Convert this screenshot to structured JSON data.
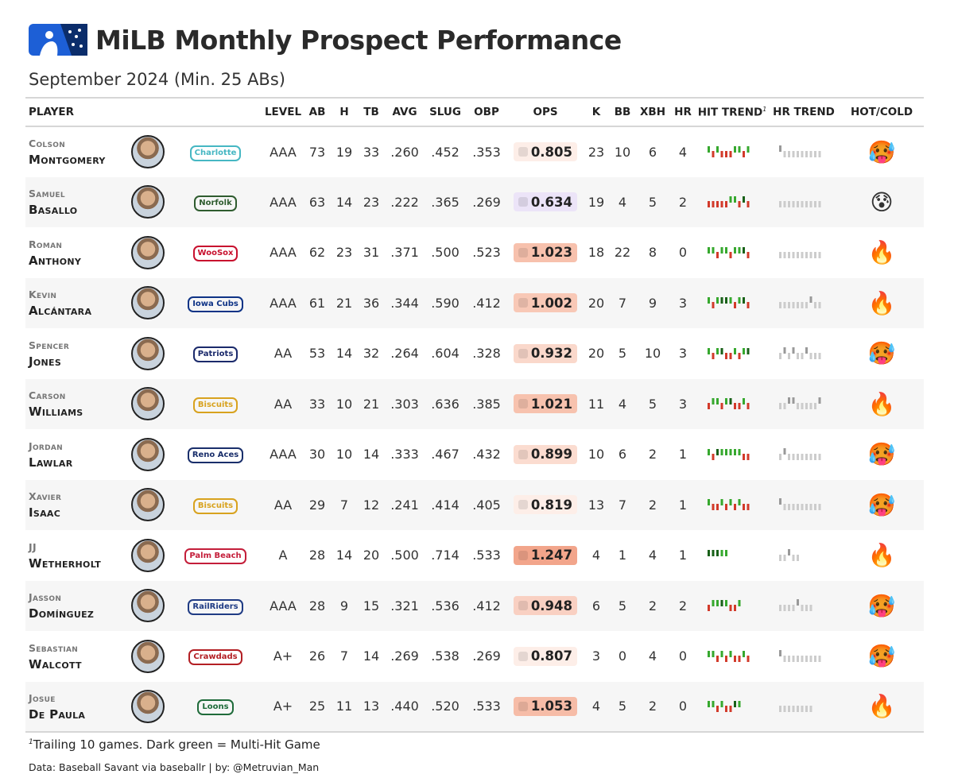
{
  "header": {
    "title": "MiLB Monthly Prospect Performance",
    "subtitle": "September 2024 (Min. 25 ABs)",
    "logo_colors": [
      "#1d5fd6",
      "#0b2d6b"
    ]
  },
  "columns": {
    "player": "PLAYER",
    "level": "LEVEL",
    "ab": "AB",
    "h": "H",
    "tb": "TB",
    "avg": "AVG",
    "slug": "SLUG",
    "obp": "OBP",
    "ops": "OPS",
    "k": "K",
    "bb": "BB",
    "xbh": "XBH",
    "hr": "HR",
    "hit_trend": "HIT TREND",
    "hit_trend_sup": "1",
    "hr_trend": "HR TREND",
    "hot_cold": "HOT/COLD"
  },
  "chart_data": {
    "type": "table",
    "title": "MiLB Monthly Prospect Performance",
    "subtitle": "September 2024 (Min. 25 ABs)",
    "colors": {
      "hit": "#36a82e",
      "multi_hit": "#186018",
      "no_hit": "#d23a2a",
      "hr": "#999999",
      "no_hr": "#cccccc"
    },
    "rows": [
      {
        "first": "Colson",
        "last": "Montgomery",
        "team": "Charlotte",
        "team_color": "#46b7c3",
        "level": "AAA",
        "ab": "73",
        "h": "19",
        "tb": "33",
        "avg": ".260",
        "slug": ".452",
        "obp": ".353",
        "ops": "0.805",
        "ops_color": "#fdeee8",
        "k": "23",
        "bb": "10",
        "xbh": "6",
        "hr": "4",
        "hot": "🥵",
        "hits": [
          1,
          0,
          1,
          0,
          0,
          0,
          1,
          1,
          0,
          1
        ],
        "hrs": [
          1,
          0,
          0,
          0,
          0,
          0,
          0,
          0,
          0,
          0
        ]
      },
      {
        "first": "Samuel",
        "last": "Basallo",
        "team": "Norfolk",
        "team_color": "#2f5c2f",
        "level": "AAA",
        "ab": "63",
        "h": "14",
        "tb": "23",
        "avg": ".222",
        "slug": ".365",
        "obp": ".269",
        "ops": "0.634",
        "ops_color": "#ece4f8",
        "k": "19",
        "bb": "4",
        "xbh": "5",
        "hr": "2",
        "hot": "😰",
        "hits": [
          0,
          0,
          0,
          0,
          0,
          1,
          1,
          0,
          2,
          0
        ],
        "hrs": [
          0,
          0,
          0,
          0,
          0,
          0,
          0,
          0,
          0,
          0
        ]
      },
      {
        "first": "Roman",
        "last": "Anthony",
        "team": "WooSox",
        "team_color": "#c8102e",
        "level": "AAA",
        "ab": "62",
        "h": "23",
        "tb": "31",
        "avg": ".371",
        "slug": ".500",
        "obp": ".523",
        "ops": "1.023",
        "ops_color": "#f7c1ad",
        "k": "18",
        "bb": "22",
        "xbh": "8",
        "hr": "0",
        "hot": "🔥",
        "hits": [
          1,
          1,
          0,
          1,
          1,
          0,
          1,
          1,
          2,
          0
        ],
        "hrs": [
          0,
          0,
          0,
          0,
          0,
          0,
          0,
          0,
          0,
          0
        ]
      },
      {
        "first": "Kevin",
        "last": "Alcántara",
        "team": "Iowa Cubs",
        "team_color": "#0e3386",
        "level": "AAA",
        "ab": "61",
        "h": "21",
        "tb": "36",
        "avg": ".344",
        "slug": ".590",
        "obp": ".412",
        "ops": "1.002",
        "ops_color": "#f8c8b6",
        "k": "20",
        "bb": "7",
        "xbh": "9",
        "hr": "3",
        "hot": "🔥",
        "hits": [
          1,
          0,
          1,
          2,
          2,
          1,
          0,
          1,
          2,
          0
        ],
        "hrs": [
          0,
          0,
          0,
          0,
          0,
          0,
          0,
          1,
          0,
          0
        ]
      },
      {
        "first": "Spencer",
        "last": "Jones",
        "team": "Patriots",
        "team_color": "#1b2a6b",
        "level": "AA",
        "ab": "53",
        "h": "14",
        "tb": "32",
        "avg": ".264",
        "slug": ".604",
        "obp": ".328",
        "ops": "0.932",
        "ops_color": "#fad8cb",
        "k": "20",
        "bb": "5",
        "xbh": "10",
        "hr": "3",
        "hot": "🥵",
        "hits": [
          1,
          0,
          1,
          2,
          0,
          0,
          1,
          0,
          1,
          2
        ],
        "hrs": [
          0,
          1,
          0,
          1,
          0,
          0,
          1,
          0,
          0,
          0
        ]
      },
      {
        "first": "Carson",
        "last": "Williams",
        "team": "Biscuits",
        "team_color": "#d8a21e",
        "level": "AA",
        "ab": "33",
        "h": "10",
        "tb": "21",
        "avg": ".303",
        "slug": ".636",
        "obp": ".385",
        "ops": "1.021",
        "ops_color": "#f7c2ae",
        "k": "11",
        "bb": "4",
        "xbh": "5",
        "hr": "3",
        "hot": "🔥",
        "hits": [
          0,
          1,
          1,
          0,
          1,
          2,
          0,
          0,
          1,
          0
        ],
        "hrs": [
          0,
          0,
          1,
          1,
          0,
          0,
          0,
          0,
          0,
          1
        ]
      },
      {
        "first": "Jordan",
        "last": "Lawlar",
        "team": "Reno Aces",
        "team_color": "#1a2f6b",
        "level": "AAA",
        "ab": "30",
        "h": "10",
        "tb": "14",
        "avg": ".333",
        "slug": ".467",
        "obp": ".432",
        "ops": "0.899",
        "ops_color": "#fbdcd0",
        "k": "10",
        "bb": "6",
        "xbh": "2",
        "hr": "1",
        "hot": "🥵",
        "hits": [
          1,
          0,
          2,
          1,
          1,
          1,
          1,
          1,
          0,
          0
        ],
        "hrs": [
          0,
          1,
          0,
          0,
          0,
          0,
          0,
          0,
          0,
          0
        ]
      },
      {
        "first": "Xavier",
        "last": "Isaac",
        "team": "Biscuits",
        "team_color": "#d8a21e",
        "level": "AA",
        "ab": "29",
        "h": "7",
        "tb": "12",
        "avg": ".241",
        "slug": ".414",
        "obp": ".405",
        "ops": "0.819",
        "ops_color": "#fdeee8",
        "k": "13",
        "bb": "7",
        "xbh": "2",
        "hr": "1",
        "hot": "🥵",
        "hits": [
          1,
          0,
          0,
          1,
          0,
          1,
          0,
          1,
          0,
          0
        ],
        "hrs": [
          1,
          0,
          0,
          0,
          0,
          0,
          0,
          0,
          0,
          0
        ]
      },
      {
        "first": "JJ",
        "last": "Wetherholt",
        "team": "Palm Beach",
        "team_color": "#c41e3a",
        "level": "A",
        "ab": "28",
        "h": "14",
        "tb": "20",
        "avg": ".500",
        "slug": ".714",
        "obp": ".533",
        "ops": "1.247",
        "ops_color": "#f2a58b",
        "k": "4",
        "bb": "1",
        "xbh": "4",
        "hr": "1",
        "hot": "🔥",
        "hits": [
          2,
          2,
          2,
          1,
          1
        ],
        "hrs": [
          0,
          0,
          1,
          0,
          0
        ]
      },
      {
        "first": "Jasson",
        "last": "Domínguez",
        "team": "RailRiders",
        "team_color": "#1f3b84",
        "level": "AAA",
        "ab": "28",
        "h": "9",
        "tb": "15",
        "avg": ".321",
        "slug": ".536",
        "obp": ".412",
        "ops": "0.948",
        "ops_color": "#f9d0c2",
        "k": "6",
        "bb": "5",
        "xbh": "2",
        "hr": "2",
        "hot": "🥵",
        "hits": [
          0,
          1,
          1,
          2,
          1,
          0,
          0,
          1
        ],
        "hrs": [
          0,
          0,
          0,
          0,
          1,
          0,
          0,
          0
        ]
      },
      {
        "first": "Sebastian",
        "last": "Walcott",
        "team": "Crawdads",
        "team_color": "#b31f24",
        "level": "A+",
        "ab": "26",
        "h": "7",
        "tb": "14",
        "avg": ".269",
        "slug": ".538",
        "obp": ".269",
        "ops": "0.807",
        "ops_color": "#fdeee8",
        "k": "3",
        "bb": "0",
        "xbh": "4",
        "hr": "0",
        "hot": "🥵",
        "hits": [
          1,
          1,
          0,
          1,
          0,
          1,
          0,
          0,
          1,
          0
        ],
        "hrs": [
          1,
          0,
          0,
          0,
          0,
          0,
          0,
          0,
          0,
          0
        ]
      },
      {
        "first": "Josue",
        "last": "De Paula",
        "team": "Loons",
        "team_color": "#1f6b3a",
        "level": "A+",
        "ab": "25",
        "h": "11",
        "tb": "13",
        "avg": ".440",
        "slug": ".520",
        "obp": ".533",
        "ops": "1.053",
        "ops_color": "#f6bca7",
        "k": "4",
        "bb": "5",
        "xbh": "2",
        "hr": "0",
        "hot": "🔥",
        "hits": [
          1,
          1,
          0,
          1,
          0,
          0,
          2,
          1
        ],
        "hrs": [
          0,
          0,
          0,
          0,
          0,
          0,
          0,
          0
        ]
      }
    ]
  },
  "footer": {
    "note_sup": "1",
    "note": "Trailing 10 games. Dark green = Multi-Hit Game",
    "source": "Data: Baseball Savant via baseballr | by: @Metruvian_Man"
  }
}
